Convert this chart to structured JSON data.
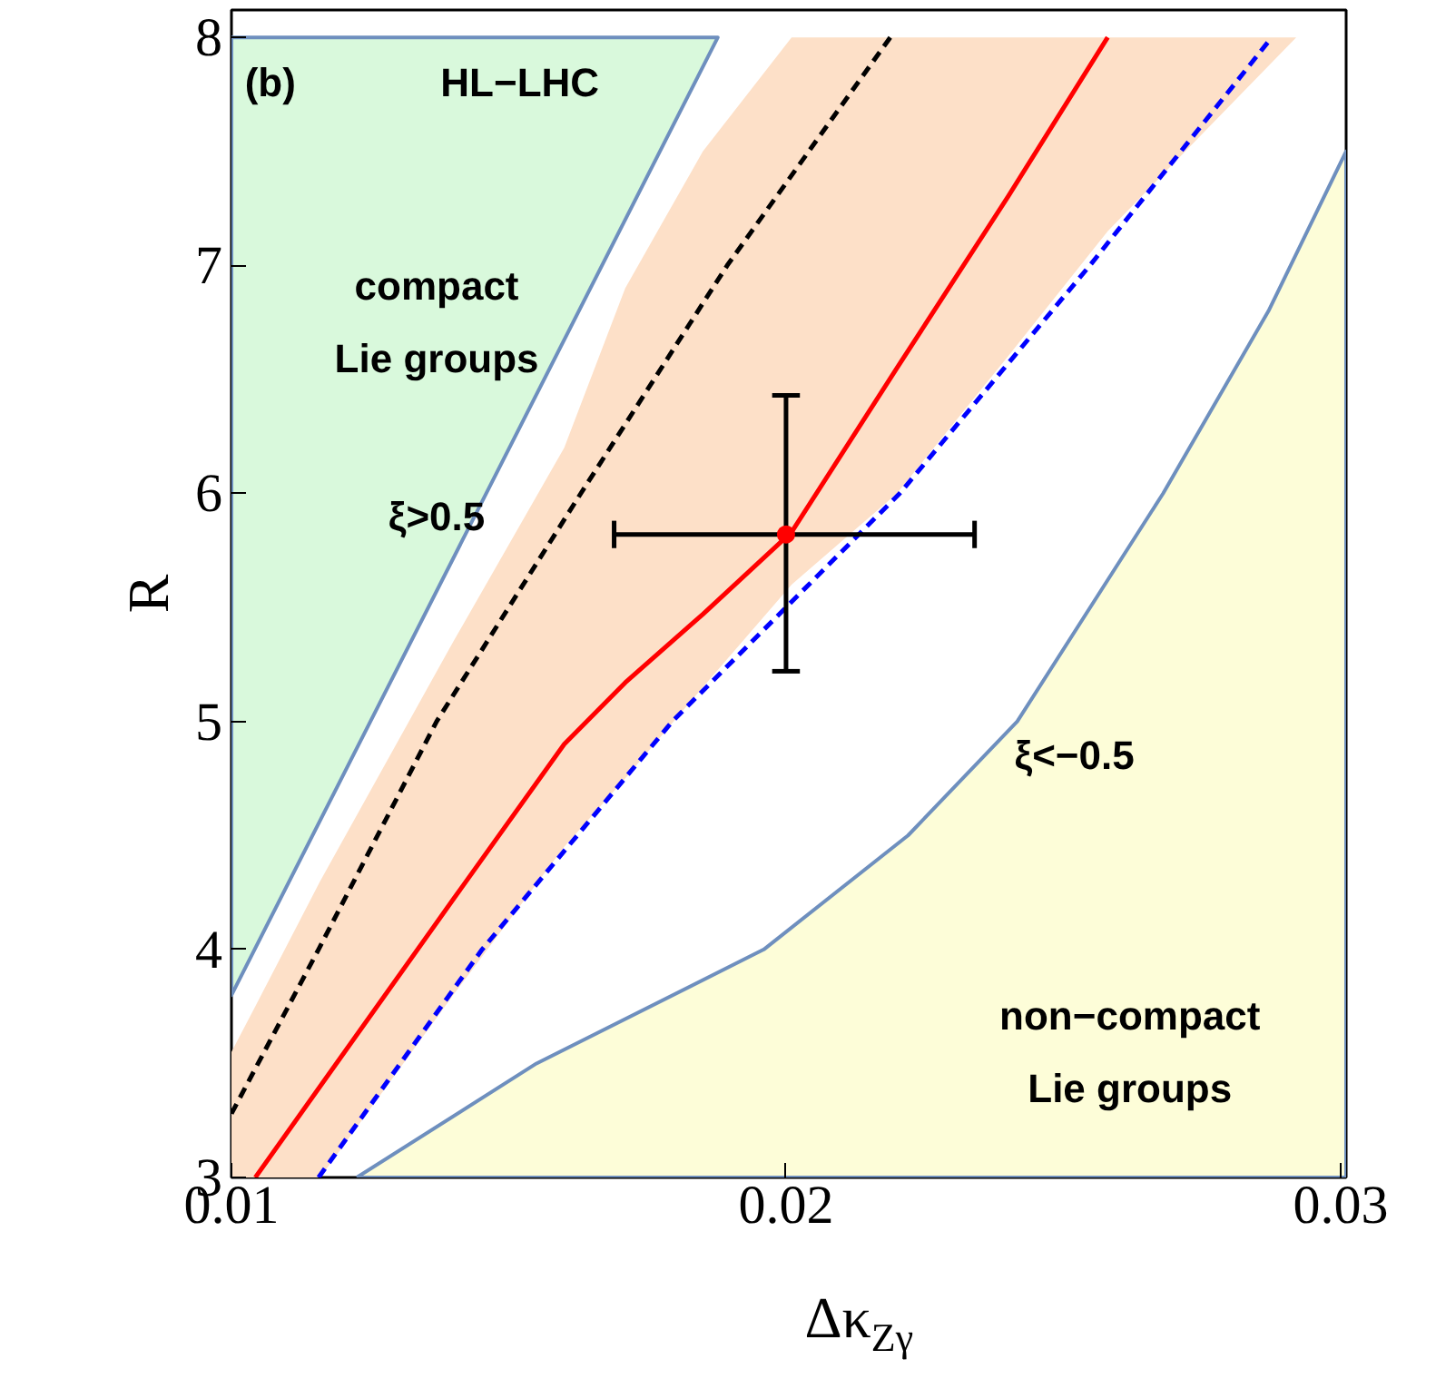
{
  "chart_data": {
    "type": "line",
    "xlabel": "Δκ$_{Zγ}$",
    "ylabel": "R",
    "xlim": [
      0.01,
      0.0301
    ],
    "ylim": [
      3,
      8.12
    ],
    "xticks": [
      0.01,
      0.02,
      0.03
    ],
    "yticks": [
      3,
      4,
      5,
      6,
      7,
      8
    ],
    "grid": false,
    "series": [
      {
        "color": "#d9f9dc",
        "line_style": "solid",
        "x": [
          0.01,
          0.01877
        ],
        "values": [
          null,
          null
        ],
        "lower": [
          3.8,
          8
        ],
        "upper": [
          8,
          8
        ]
      },
      {
        "color": "#fde0c8",
        "x": [
          0.01,
          0.01043,
          0.0116,
          0.014,
          0.016,
          0.0171,
          0.0185,
          0.0201,
          0.022,
          0.024,
          0.0258,
          0.028,
          0.0292
        ],
        "values": [
          null,
          null,
          null,
          null,
          null,
          null,
          null,
          null,
          null,
          null,
          null,
          null,
          null
        ],
        "lower": [
          3,
          3,
          3,
          3.8,
          4.45,
          4.75,
          5.15,
          5.6,
          6.0,
          6.6,
          7.15,
          7.7,
          8
        ],
        "upper": [
          3.55,
          3.75,
          4.3,
          5.35,
          6.2,
          6.9,
          7.5,
          8,
          8,
          8,
          8,
          8,
          8
        ]
      },
      {
        "type": "area",
        "color": "#fdfdd8",
        "line_style": "solid",
        "x": [
          0.01226,
          0.0155,
          0.0196,
          0.0222,
          0.02417,
          0.0268,
          0.0287,
          0.0301
        ],
        "values": [
          3,
          3.5,
          4,
          4.5,
          5,
          6,
          6.8,
          7.5
        ]
      },
      {
        "color": "#000000",
        "line_style": "dashed",
        "x": [
          0.01,
          0.01157,
          0.0137,
          0.0163,
          0.01894,
          0.02188
        ],
        "values": [
          3.28,
          4,
          5,
          6,
          7,
          8
        ]
      },
      {
        "color": "#ff0000",
        "line_style": "solid",
        "x": [
          0.01043,
          0.0116,
          0.014,
          0.016,
          0.0171,
          0.0185,
          0.0201,
          0.022,
          0.024,
          0.0258
        ],
        "values": [
          3,
          3.4,
          4.22,
          4.9,
          5.17,
          5.47,
          5.83,
          6.55,
          7.3,
          8
        ]
      },
      {
        "color": "#0000ff",
        "line_style": "dashed",
        "x": [
          0.01157,
          0.01452,
          0.01795,
          0.02205,
          0.02548,
          0.02876
        ],
        "values": [
          3,
          4,
          5,
          6,
          7,
          8
        ]
      },
      {
        "type": "scatter",
        "color": "#ff0000",
        "marker": "circle",
        "x": [
          0.02
        ],
        "values": [
          5.82
        ],
        "errors": [
          [
            5.22,
            6.43
          ]
        ],
        "xerrors": [
          [
            0.0169,
            0.0234
          ]
        ]
      }
    ],
    "annotations": [
      "(b)",
      "HL−LHC",
      "compact\nLie groups",
      "ξ>0.5",
      "ξ<−0.5",
      "non−compact\nLie groups"
    ]
  }
}
